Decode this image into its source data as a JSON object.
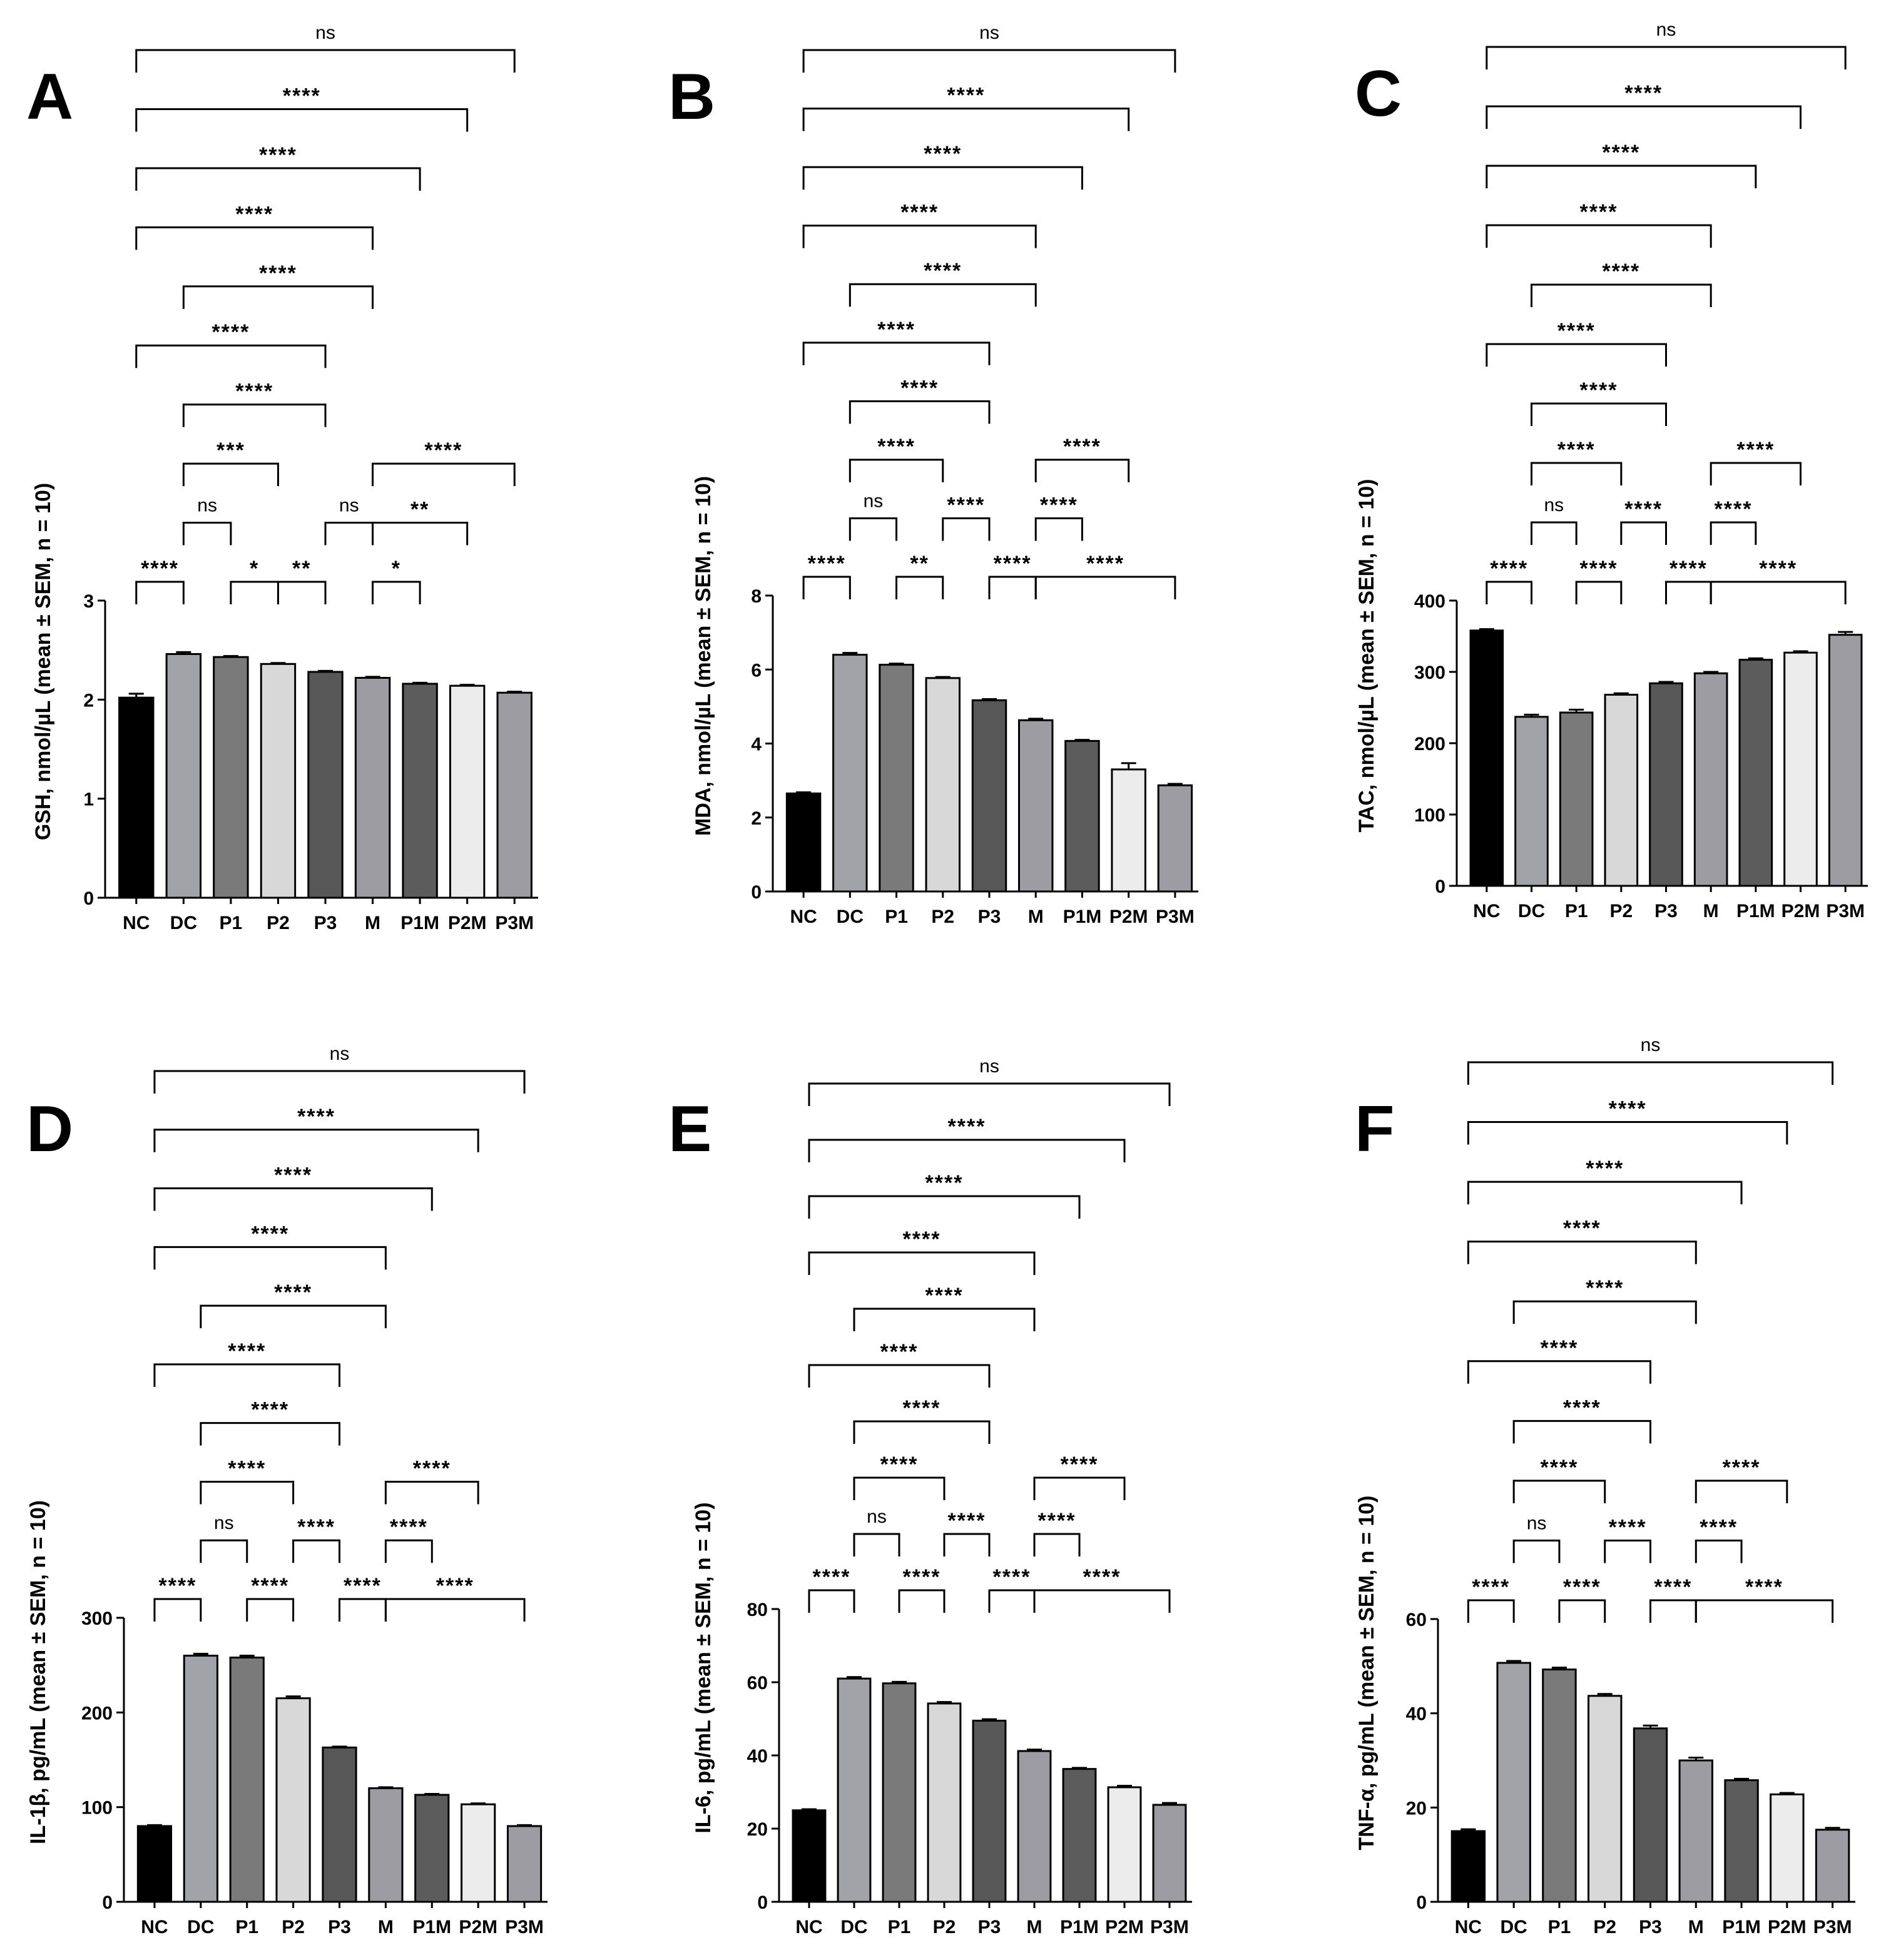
{
  "categories": [
    "NC",
    "DC",
    "P1",
    "P2",
    "P3",
    "M",
    "P1M",
    "P2M",
    "P3M"
  ],
  "bar_colors": [
    "#000000",
    "#a2a2a9",
    "#7a7a7a",
    "#d8d8d8",
    "#575757",
    "#9c9ca2",
    "#5c5c5c",
    "#ececec",
    "#9c9ca2"
  ],
  "chart_data": [
    {
      "type": "bar",
      "panel": "A",
      "ylabel": "GSH, nmol/µL (mean ± SEM, n = 10)",
      "ylim": [
        0,
        3
      ],
      "yticks": [
        0,
        1,
        2,
        3
      ],
      "categories": [
        "NC",
        "DC",
        "P1",
        "P2",
        "P3",
        "M",
        "P1M",
        "P2M",
        "P3M"
      ],
      "values": [
        2.02,
        2.46,
        2.43,
        2.36,
        2.28,
        2.22,
        2.16,
        2.14,
        2.07
      ],
      "errors": [
        0.04,
        0.02,
        0.01,
        0.01,
        0.01,
        0.01,
        0.01,
        0.01,
        0.01
      ],
      "comparisons": [
        {
          "a": 0,
          "b": 1,
          "label": "****"
        },
        {
          "a": 2,
          "b": 3,
          "label": "*"
        },
        {
          "a": 3,
          "b": 4,
          "label": "**"
        },
        {
          "a": 5,
          "b": 6,
          "label": "*"
        },
        {
          "a": 1,
          "b": 2,
          "label": "ns"
        },
        {
          "a": 4,
          "b": 5,
          "label": "ns"
        },
        {
          "a": 5,
          "b": 7,
          "label": "**"
        },
        {
          "a": 1,
          "b": 3,
          "label": "***"
        },
        {
          "a": 5,
          "b": 8,
          "label": "****"
        },
        {
          "a": 1,
          "b": 4,
          "label": "****"
        },
        {
          "a": 0,
          "b": 4,
          "label": "****"
        },
        {
          "a": 1,
          "b": 5,
          "label": "****"
        },
        {
          "a": 0,
          "b": 5,
          "label": "****"
        },
        {
          "a": 0,
          "b": 6,
          "label": "****"
        },
        {
          "a": 0,
          "b": 7,
          "label": "****"
        },
        {
          "a": 0,
          "b": 8,
          "label": "ns"
        }
      ]
    },
    {
      "type": "bar",
      "panel": "B",
      "ylabel": "MDA, nmol/µL (mean ± SEM, n = 10)",
      "ylim": [
        0,
        8
      ],
      "yticks": [
        0,
        2,
        4,
        6,
        8
      ],
      "categories": [
        "NC",
        "DC",
        "P1",
        "P2",
        "P3",
        "M",
        "P1M",
        "P2M",
        "P3M"
      ],
      "values": [
        2.65,
        6.4,
        6.13,
        5.77,
        5.17,
        4.63,
        4.07,
        3.3,
        2.87
      ],
      "errors": [
        0.03,
        0.05,
        0.03,
        0.03,
        0.03,
        0.04,
        0.03,
        0.17,
        0.04
      ],
      "comparisons": [
        {
          "a": 0,
          "b": 1,
          "label": "****"
        },
        {
          "a": 2,
          "b": 3,
          "label": "**"
        },
        {
          "a": 4,
          "b": 5,
          "label": "****"
        },
        {
          "a": 5,
          "b": 8,
          "label": "****"
        },
        {
          "a": 1,
          "b": 2,
          "label": "ns"
        },
        {
          "a": 3,
          "b": 4,
          "label": "****"
        },
        {
          "a": 5,
          "b": 6,
          "label": "****"
        },
        {
          "a": 1,
          "b": 3,
          "label": "****"
        },
        {
          "a": 5,
          "b": 7,
          "label": "****"
        },
        {
          "a": 1,
          "b": 4,
          "label": "****"
        },
        {
          "a": 0,
          "b": 4,
          "label": "****"
        },
        {
          "a": 1,
          "b": 5,
          "label": "****"
        },
        {
          "a": 0,
          "b": 5,
          "label": "****"
        },
        {
          "a": 0,
          "b": 6,
          "label": "****"
        },
        {
          "a": 0,
          "b": 7,
          "label": "****"
        },
        {
          "a": 0,
          "b": 8,
          "label": "ns"
        }
      ]
    },
    {
      "type": "bar",
      "panel": "C",
      "ylabel": "TAC, nmol/µL (mean ± SEM, n = 10)",
      "ylim": [
        0,
        400
      ],
      "yticks": [
        0,
        100,
        200,
        300,
        400
      ],
      "categories": [
        "NC",
        "DC",
        "P1",
        "P2",
        "P3",
        "M",
        "P1M",
        "P2M",
        "P3M"
      ],
      "values": [
        358,
        237,
        243,
        268,
        284,
        298,
        317,
        327,
        352
      ],
      "errors": [
        2,
        3,
        4,
        2,
        2,
        2,
        2,
        2,
        4
      ],
      "comparisons": [
        {
          "a": 0,
          "b": 1,
          "label": "****"
        },
        {
          "a": 2,
          "b": 3,
          "label": "****"
        },
        {
          "a": 4,
          "b": 5,
          "label": "****"
        },
        {
          "a": 5,
          "b": 8,
          "label": "****"
        },
        {
          "a": 1,
          "b": 2,
          "label": "ns"
        },
        {
          "a": 3,
          "b": 4,
          "label": "****"
        },
        {
          "a": 5,
          "b": 6,
          "label": "****"
        },
        {
          "a": 1,
          "b": 3,
          "label": "****"
        },
        {
          "a": 5,
          "b": 7,
          "label": "****"
        },
        {
          "a": 1,
          "b": 4,
          "label": "****"
        },
        {
          "a": 0,
          "b": 4,
          "label": "****"
        },
        {
          "a": 1,
          "b": 5,
          "label": "****"
        },
        {
          "a": 0,
          "b": 5,
          "label": "****"
        },
        {
          "a": 0,
          "b": 6,
          "label": "****"
        },
        {
          "a": 0,
          "b": 7,
          "label": "****"
        },
        {
          "a": 0,
          "b": 8,
          "label": "ns"
        }
      ]
    },
    {
      "type": "bar",
      "panel": "D",
      "ylabel": "IL-1β, pg/mL (mean ± SEM, n = 10)",
      "ylim": [
        0,
        300
      ],
      "yticks": [
        0,
        100,
        200,
        300
      ],
      "categories": [
        "NC",
        "DC",
        "P1",
        "P2",
        "P3",
        "M",
        "P1M",
        "P2M",
        "P3M"
      ],
      "values": [
        80,
        260,
        258,
        215,
        163,
        120,
        113,
        103,
        80
      ],
      "errors": [
        1,
        2,
        2,
        2,
        1,
        1,
        1,
        1,
        1
      ],
      "comparisons": [
        {
          "a": 0,
          "b": 1,
          "label": "****"
        },
        {
          "a": 2,
          "b": 3,
          "label": "****"
        },
        {
          "a": 4,
          "b": 5,
          "label": "****"
        },
        {
          "a": 5,
          "b": 8,
          "label": "****"
        },
        {
          "a": 1,
          "b": 2,
          "label": "ns"
        },
        {
          "a": 3,
          "b": 4,
          "label": "****"
        },
        {
          "a": 5,
          "b": 6,
          "label": "****"
        },
        {
          "a": 1,
          "b": 3,
          "label": "****"
        },
        {
          "a": 5,
          "b": 7,
          "label": "****"
        },
        {
          "a": 1,
          "b": 4,
          "label": "****"
        },
        {
          "a": 0,
          "b": 4,
          "label": "****"
        },
        {
          "a": 1,
          "b": 5,
          "label": "****"
        },
        {
          "a": 0,
          "b": 5,
          "label": "****"
        },
        {
          "a": 0,
          "b": 6,
          "label": "****"
        },
        {
          "a": 0,
          "b": 7,
          "label": "****"
        },
        {
          "a": 0,
          "b": 8,
          "label": "ns"
        }
      ]
    },
    {
      "type": "bar",
      "panel": "E",
      "ylabel": "IL-6, pg/mL (mean ± SEM, n = 10)",
      "ylim": [
        0,
        80
      ],
      "yticks": [
        0,
        20,
        40,
        60,
        80
      ],
      "categories": [
        "NC",
        "DC",
        "P1",
        "P2",
        "P3",
        "M",
        "P1M",
        "P2M",
        "P3M"
      ],
      "values": [
        25,
        61,
        59.7,
        54.2,
        49.5,
        41.2,
        36.3,
        31.3,
        26.5
      ],
      "errors": [
        0.3,
        0.4,
        0.4,
        0.4,
        0.4,
        0.4,
        0.3,
        0.4,
        0.5
      ],
      "comparisons": [
        {
          "a": 0,
          "b": 1,
          "label": "****"
        },
        {
          "a": 2,
          "b": 3,
          "label": "****"
        },
        {
          "a": 4,
          "b": 5,
          "label": "****"
        },
        {
          "a": 5,
          "b": 8,
          "label": "****"
        },
        {
          "a": 1,
          "b": 2,
          "label": "ns"
        },
        {
          "a": 3,
          "b": 4,
          "label": "****"
        },
        {
          "a": 5,
          "b": 6,
          "label": "****"
        },
        {
          "a": 1,
          "b": 3,
          "label": "****"
        },
        {
          "a": 5,
          "b": 7,
          "label": "****"
        },
        {
          "a": 1,
          "b": 4,
          "label": "****"
        },
        {
          "a": 0,
          "b": 4,
          "label": "****"
        },
        {
          "a": 1,
          "b": 5,
          "label": "****"
        },
        {
          "a": 0,
          "b": 5,
          "label": "****"
        },
        {
          "a": 0,
          "b": 6,
          "label": "****"
        },
        {
          "a": 0,
          "b": 7,
          "label": "****"
        },
        {
          "a": 0,
          "b": 8,
          "label": "ns"
        }
      ]
    },
    {
      "type": "bar",
      "panel": "F",
      "ylabel": "TNF-α, pg/mL (mean ± SEM, n = 10)",
      "ylim": [
        0,
        60
      ],
      "yticks": [
        0,
        20,
        40,
        60
      ],
      "categories": [
        "NC",
        "DC",
        "P1",
        "P2",
        "P3",
        "M",
        "P1M",
        "P2M",
        "P3M"
      ],
      "values": [
        15,
        50.7,
        49.3,
        43.7,
        36.8,
        30,
        25.8,
        22.8,
        15.3
      ],
      "errors": [
        0.4,
        0.4,
        0.4,
        0.4,
        0.6,
        0.6,
        0.3,
        0.3,
        0.4
      ],
      "comparisons": [
        {
          "a": 0,
          "b": 1,
          "label": "****"
        },
        {
          "a": 2,
          "b": 3,
          "label": "****"
        },
        {
          "a": 4,
          "b": 5,
          "label": "****"
        },
        {
          "a": 5,
          "b": 8,
          "label": "****"
        },
        {
          "a": 1,
          "b": 2,
          "label": "ns"
        },
        {
          "a": 3,
          "b": 4,
          "label": "****"
        },
        {
          "a": 5,
          "b": 6,
          "label": "****"
        },
        {
          "a": 1,
          "b": 3,
          "label": "****"
        },
        {
          "a": 5,
          "b": 7,
          "label": "****"
        },
        {
          "a": 1,
          "b": 4,
          "label": "****"
        },
        {
          "a": 0,
          "b": 4,
          "label": "****"
        },
        {
          "a": 1,
          "b": 5,
          "label": "****"
        },
        {
          "a": 0,
          "b": 5,
          "label": "****"
        },
        {
          "a": 0,
          "b": 6,
          "label": "****"
        },
        {
          "a": 0,
          "b": 7,
          "label": "****"
        },
        {
          "a": 0,
          "b": 8,
          "label": "ns"
        }
      ]
    }
  ]
}
